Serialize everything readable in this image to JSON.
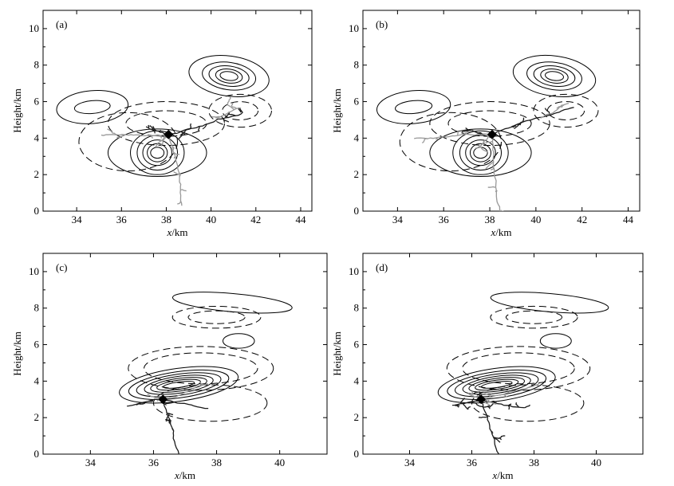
{
  "chart_data": [
    {
      "type": "contour",
      "panel_label": "(a)",
      "xlabel_var": "x",
      "xlabel_unit": "/km",
      "ylabel": "Height/km",
      "xlim": [
        32.5,
        44.5
      ],
      "ylim": [
        0,
        11
      ],
      "xticks": [
        34,
        36,
        38,
        40,
        42,
        44
      ],
      "yticks": [
        0,
        2,
        4,
        6,
        8,
        10
      ],
      "solid_centers": [
        [
          40.8,
          7.4
        ],
        [
          37.6,
          3.2
        ],
        [
          34.7,
          5.7
        ]
      ],
      "dashed_centers": [
        [
          38.0,
          4.8
        ],
        [
          36.3,
          3.8
        ],
        [
          41.3,
          5.5
        ]
      ],
      "initiation_point": [
        38.1,
        4.2
      ],
      "channel_colors": {
        "negative": "#1a1a1a",
        "positive": "#999999"
      }
    },
    {
      "type": "contour",
      "panel_label": "(b)",
      "xlabel_var": "x",
      "xlabel_unit": "/km",
      "ylabel": "Height/km",
      "xlim": [
        32.5,
        44.5
      ],
      "ylim": [
        0,
        11
      ],
      "xticks": [
        34,
        36,
        38,
        40,
        42,
        44
      ],
      "yticks": [
        0,
        2,
        4,
        6,
        8,
        10
      ],
      "solid_centers": [
        [
          40.8,
          7.4
        ],
        [
          37.6,
          3.2
        ],
        [
          34.7,
          5.7
        ]
      ],
      "dashed_centers": [
        [
          38.0,
          4.8
        ],
        [
          36.3,
          3.8
        ],
        [
          41.3,
          5.5
        ]
      ],
      "initiation_point": [
        38.1,
        4.2
      ],
      "channel_colors": {
        "negative": "#1a1a1a",
        "positive": "#999999"
      }
    },
    {
      "type": "contour",
      "panel_label": "(c)",
      "xlabel_var": "x",
      "xlabel_unit": "/km",
      "ylabel": "Height/km",
      "xlim": [
        32.5,
        41.5
      ],
      "ylim": [
        0,
        11
      ],
      "xticks": [
        34,
        36,
        38,
        40
      ],
      "yticks": [
        0,
        2,
        4,
        6,
        8,
        10
      ],
      "solid_centers": [
        [
          36.8,
          3.8
        ],
        [
          38.5,
          8.3
        ],
        [
          38.7,
          6.2
        ]
      ],
      "dashed_centers": [
        [
          37.5,
          4.7
        ],
        [
          37.8,
          2.8
        ],
        [
          38.0,
          7.5
        ]
      ],
      "initiation_point": [
        36.3,
        3.0
      ],
      "channel_colors": {
        "negative": "#1a1a1a",
        "positive": "#999999"
      }
    },
    {
      "type": "contour",
      "panel_label": "(d)",
      "xlabel_var": "x",
      "xlabel_unit": "/km",
      "ylabel": "Height/km",
      "xlim": [
        32.5,
        41.5
      ],
      "ylim": [
        0,
        11
      ],
      "xticks": [
        34,
        36,
        38,
        40
      ],
      "yticks": [
        0,
        2,
        4,
        6,
        8,
        10
      ],
      "solid_centers": [
        [
          36.8,
          3.8
        ],
        [
          38.5,
          8.3
        ],
        [
          38.7,
          6.2
        ]
      ],
      "dashed_centers": [
        [
          37.5,
          4.7
        ],
        [
          37.8,
          2.8
        ],
        [
          38.0,
          7.5
        ]
      ],
      "initiation_point": [
        36.3,
        3.0
      ],
      "channel_colors": {
        "negative": "#1a1a1a",
        "positive": "#999999"
      }
    }
  ]
}
